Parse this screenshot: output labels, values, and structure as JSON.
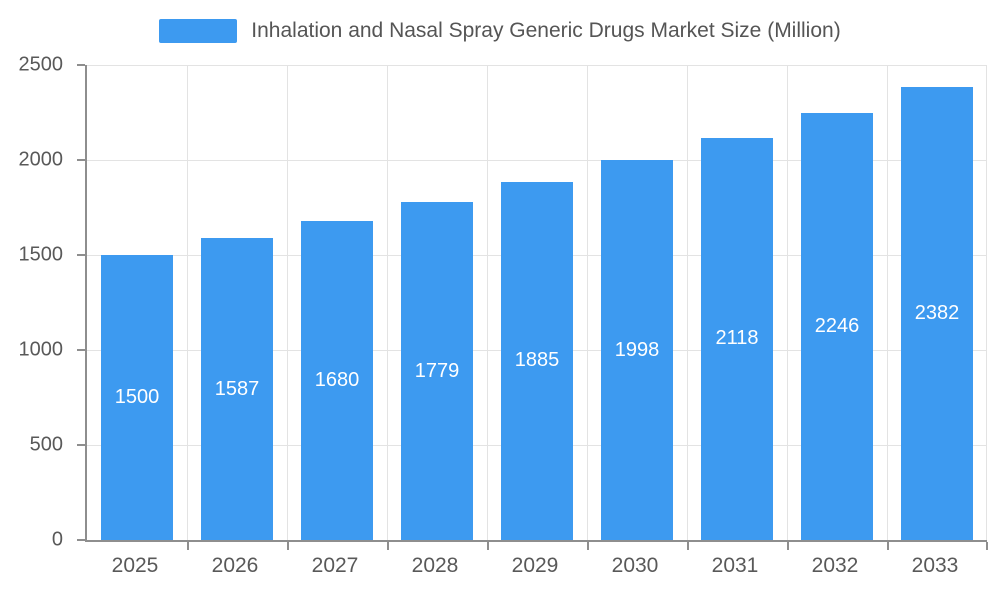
{
  "legend": {
    "label": "Inhalation and Nasal Spray Generic Drugs Market Size (Million)"
  },
  "chart_data": {
    "type": "bar",
    "title": "Inhalation and Nasal Spray Generic Drugs Market Size (Million)",
    "categories": [
      "2025",
      "2026",
      "2027",
      "2028",
      "2029",
      "2030",
      "2031",
      "2032",
      "2033"
    ],
    "values": [
      1500,
      1587,
      1680,
      1779,
      1885,
      1998,
      2118,
      2246,
      2382
    ],
    "xlabel": "",
    "ylabel": "",
    "ylim": [
      0,
      2500
    ],
    "yticks": [
      0,
      500,
      1000,
      1500,
      2000,
      2500
    ],
    "grid": true,
    "legend_position": "top",
    "bar_color": "#3d9af0",
    "bar_label_color": "#ffffff",
    "axis_text_color": "#595959"
  }
}
